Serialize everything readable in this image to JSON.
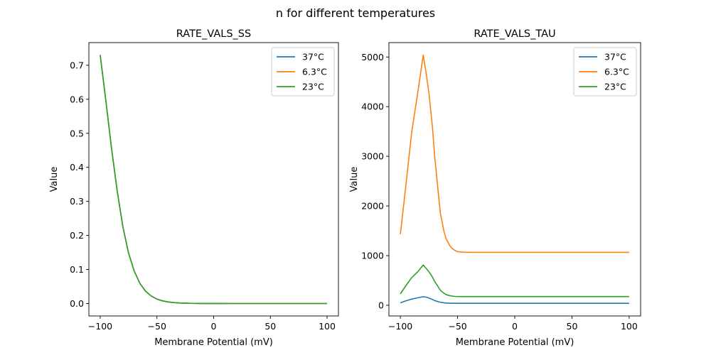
{
  "figure": {
    "suptitle": "n for different temperatures"
  },
  "chart_data": [
    {
      "type": "line",
      "title": "RATE_VALS_SS",
      "xlabel": "Membrane Potential (mV)",
      "ylabel": "Value",
      "xlim": [
        -110,
        110
      ],
      "ylim": [
        -0.0365,
        0.7665
      ],
      "xticks": [
        -100,
        -50,
        0,
        50,
        100
      ],
      "xtick_labels": [
        "−100",
        "−50",
        "0",
        "50",
        "100"
      ],
      "yticks": [
        0.0,
        0.1,
        0.2,
        0.3,
        0.4,
        0.5,
        0.6,
        0.7
      ],
      "ytick_labels": [
        "0.0",
        "0.1",
        "0.2",
        "0.3",
        "0.4",
        "0.5",
        "0.6",
        "0.7"
      ],
      "grid": false,
      "legend": "top-right",
      "x": [
        -100,
        -95,
        -90,
        -85,
        -80,
        -75,
        -70,
        -65,
        -60,
        -55,
        -50,
        -45,
        -40,
        -35,
        -30,
        -25,
        -20,
        -10,
        0,
        20,
        50,
        100
      ],
      "series": [
        {
          "name": "37°C",
          "color": "#1f77b4",
          "values": [
            0.73,
            0.595,
            0.455,
            0.33,
            0.225,
            0.148,
            0.095,
            0.059,
            0.036,
            0.022,
            0.013,
            0.0077,
            0.0045,
            0.0027,
            0.0016,
            0.0009,
            0.0005,
            0.0002,
            0.0001,
            0.0,
            0.0,
            0.0
          ]
        },
        {
          "name": "6.3°C",
          "color": "#ff7f0e",
          "values": [
            0.73,
            0.595,
            0.455,
            0.33,
            0.225,
            0.148,
            0.095,
            0.059,
            0.036,
            0.022,
            0.013,
            0.0077,
            0.0045,
            0.0027,
            0.0016,
            0.0009,
            0.0005,
            0.0002,
            0.0001,
            0.0,
            0.0,
            0.0
          ]
        },
        {
          "name": "23°C",
          "color": "#2ca02c",
          "values": [
            0.73,
            0.595,
            0.455,
            0.33,
            0.225,
            0.148,
            0.095,
            0.059,
            0.036,
            0.022,
            0.013,
            0.0077,
            0.0045,
            0.0027,
            0.0016,
            0.0009,
            0.0005,
            0.0002,
            0.0001,
            0.0,
            0.0,
            0.0
          ]
        }
      ]
    },
    {
      "type": "line",
      "title": "RATE_VALS_TAU",
      "xlabel": "Membrane Potential (mV)",
      "ylabel": "Value",
      "xlim": [
        -110,
        110
      ],
      "ylim": [
        -215,
        5290
      ],
      "xticks": [
        -100,
        -50,
        0,
        50,
        100
      ],
      "xtick_labels": [
        "−100",
        "−50",
        "0",
        "50",
        "100"
      ],
      "yticks": [
        0,
        1000,
        2000,
        3000,
        4000,
        5000
      ],
      "ytick_labels": [
        "0",
        "1000",
        "2000",
        "3000",
        "4000",
        "5000"
      ],
      "grid": false,
      "legend": "top-right",
      "x": [
        -100,
        -95,
        -90,
        -85,
        -80,
        -77,
        -75,
        -72,
        -70,
        -67,
        -65,
        -62,
        -60,
        -57,
        -55,
        -52,
        -50,
        -45,
        -40,
        -30,
        0,
        50,
        100
      ],
      "series": [
        {
          "name": "37°C",
          "color": "#1f77b4",
          "values": [
            50,
            90,
            125,
            150,
            173,
            162,
            145,
            118,
            95,
            73,
            60,
            50,
            45,
            42,
            41,
            40,
            40,
            40,
            40,
            40,
            40,
            40,
            40
          ]
        },
        {
          "name": "6.3°C",
          "color": "#ff7f0e",
          "values": [
            1430,
            2450,
            3500,
            4250,
            5040,
            4600,
            4270,
            3600,
            3000,
            2300,
            1850,
            1500,
            1340,
            1210,
            1150,
            1100,
            1080,
            1070,
            1065,
            1065,
            1065,
            1065,
            1065
          ]
        },
        {
          "name": "23°C",
          "color": "#2ca02c",
          "values": [
            230,
            400,
            560,
            670,
            810,
            730,
            675,
            570,
            480,
            375,
            300,
            245,
            215,
            195,
            185,
            178,
            176,
            175,
            175,
            175,
            175,
            175,
            175
          ]
        }
      ]
    }
  ]
}
